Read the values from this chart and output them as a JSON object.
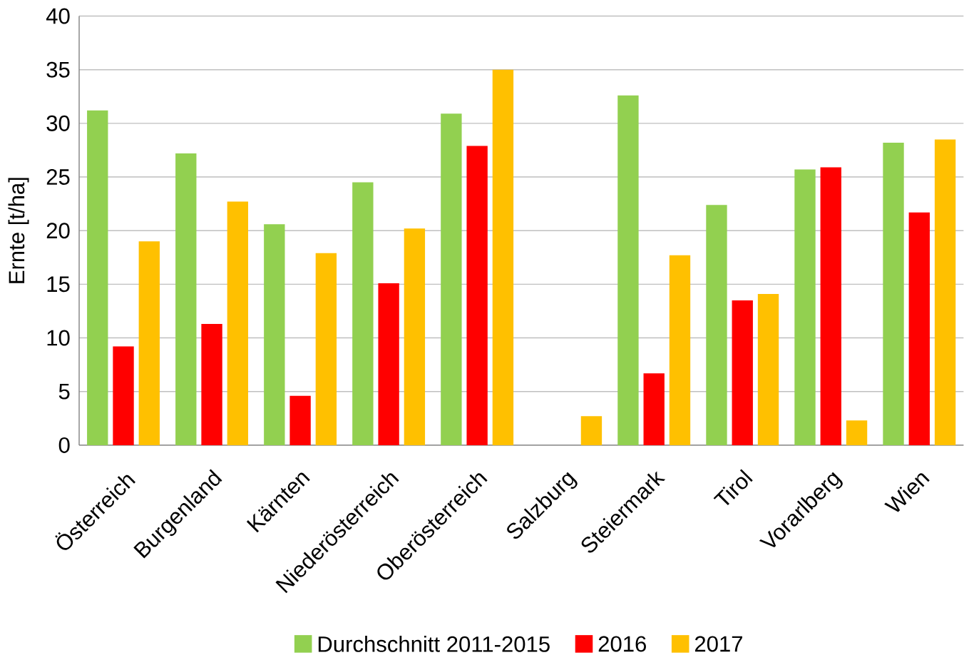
{
  "chart_data": {
    "type": "bar",
    "ylabel": "Ernte [t/ha]",
    "categories": [
      "Österreich",
      "Burgenland",
      "Kärnten",
      "Niederösterreich",
      "Oberösterreich",
      "Salzburg",
      "Steiermark",
      "Tirol",
      "Vorarlberg",
      "Wien"
    ],
    "series": [
      {
        "name": "Durchschnitt 2011-2015",
        "color": "#92d050",
        "values": [
          31.2,
          27.2,
          20.6,
          24.5,
          30.9,
          null,
          32.6,
          22.4,
          25.7,
          28.2
        ]
      },
      {
        "name": "2016",
        "color": "#ff0000",
        "values": [
          9.2,
          11.3,
          4.6,
          15.1,
          27.9,
          null,
          6.7,
          13.5,
          25.9,
          21.7
        ]
      },
      {
        "name": "2017",
        "color": "#ffc000",
        "values": [
          19.0,
          22.7,
          17.9,
          20.2,
          35.0,
          2.7,
          17.7,
          14.1,
          2.3,
          28.5
        ]
      }
    ],
    "ylim": [
      0,
      40
    ],
    "yticks": [
      0,
      5,
      10,
      15,
      20,
      25,
      30,
      35,
      40
    ],
    "grid": "y",
    "legend": "bottom"
  }
}
